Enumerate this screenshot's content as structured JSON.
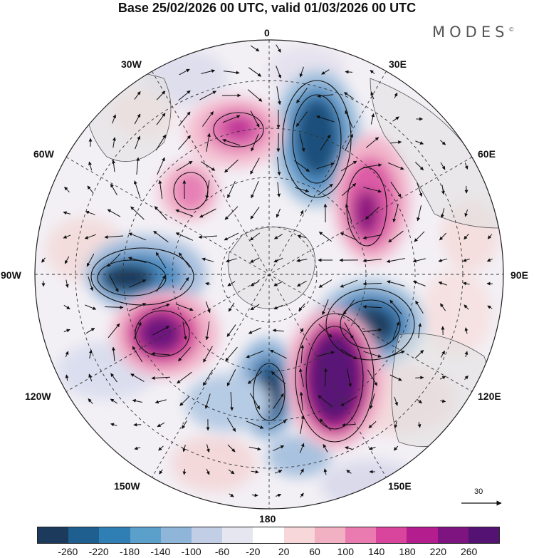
{
  "title": "Base 25/02/2026 00 UTC, valid 01/03/2026 00 UTC",
  "logo": "MODES",
  "logo_mark": "©",
  "longitude_labels": {
    "lon_0": "0",
    "lon_30e": "30E",
    "lon_60e": "60E",
    "lon_90e": "90E",
    "lon_120e": "120E",
    "lon_150e": "150E",
    "lon_180": "180",
    "lon_150w": "150W",
    "lon_120w": "120W",
    "lon_90w": "90W",
    "lon_60w": "60W",
    "lon_30w": "30W"
  },
  "reference_vector": {
    "value": "30"
  },
  "colorbar": {
    "ticks": [
      "-260",
      "-220",
      "-180",
      "-140",
      "-100",
      "-60",
      "-20",
      "20",
      "60",
      "100",
      "140",
      "180",
      "220",
      "260"
    ],
    "colors": [
      "#1b3a5c",
      "#1f5f8f",
      "#2f7fb5",
      "#5b9fcb",
      "#8fb5d9",
      "#c2cde6",
      "#e6e6f0",
      "#ffffff",
      "#f7d7d9",
      "#f2b0c3",
      "#ea7bb0",
      "#d9449d",
      "#b41d8d",
      "#7e1480",
      "#541273"
    ]
  },
  "colors": {
    "land": "#ececec",
    "graticule": "#333333",
    "coast": "#555555"
  }
}
